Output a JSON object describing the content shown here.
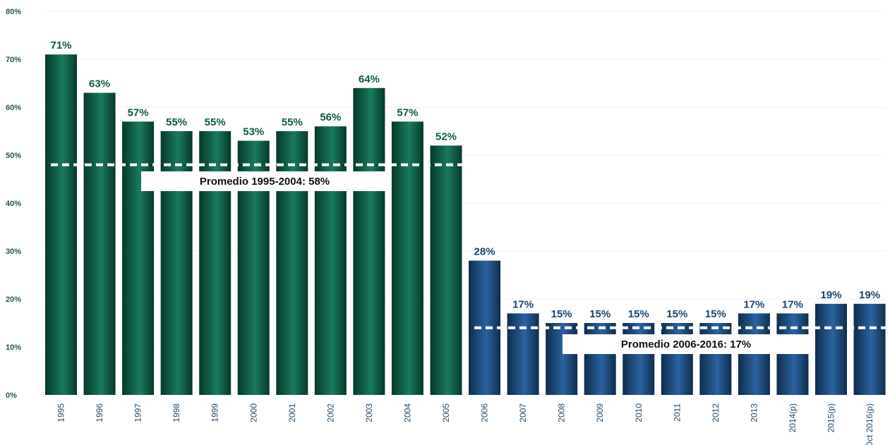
{
  "chart_data": {
    "type": "bar",
    "title": "",
    "xlabel": "",
    "ylabel": "",
    "ylim": [
      0,
      80
    ],
    "yticks": [
      "0%",
      "10%",
      "20%",
      "30%",
      "40%",
      "50%",
      "60%",
      "70%",
      "80%"
    ],
    "grid": false,
    "categories": [
      "1995",
      "1996",
      "1997",
      "1998",
      "1999",
      "2000",
      "2001",
      "2002",
      "2003",
      "2004",
      "2005",
      "2006",
      "2007",
      "2008",
      "2009",
      "2010",
      "2011",
      "2012",
      "2013",
      "2014(p)",
      "2015(p)",
      "Oct 2016(p)"
    ],
    "values": [
      71,
      63,
      57,
      55,
      55,
      53,
      55,
      56,
      64,
      57,
      52,
      28,
      17,
      15,
      15,
      15,
      15,
      15,
      17,
      17,
      19,
      19
    ],
    "value_labels": [
      "71%",
      "63%",
      "57%",
      "55%",
      "55%",
      "53%",
      "55%",
      "56%",
      "64%",
      "57%",
      "52%",
      "28%",
      "17%",
      "15%",
      "15%",
      "15%",
      "15%",
      "15%",
      "17%",
      "17%",
      "19%",
      "19%"
    ],
    "colors": {
      "group1": "#0d5a45",
      "group2": "#1a4670",
      "label_group1": "#0d5a45",
      "label_group2": "#1a4670"
    },
    "averages": [
      {
        "label": "Promedio 1995-2004: 58%",
        "value": 48,
        "from_index": 0,
        "to_index": 10
      },
      {
        "label": "Promedio 2006-2016: 17%",
        "value": 14,
        "from_index": 11,
        "to_index": 21
      }
    ]
  }
}
